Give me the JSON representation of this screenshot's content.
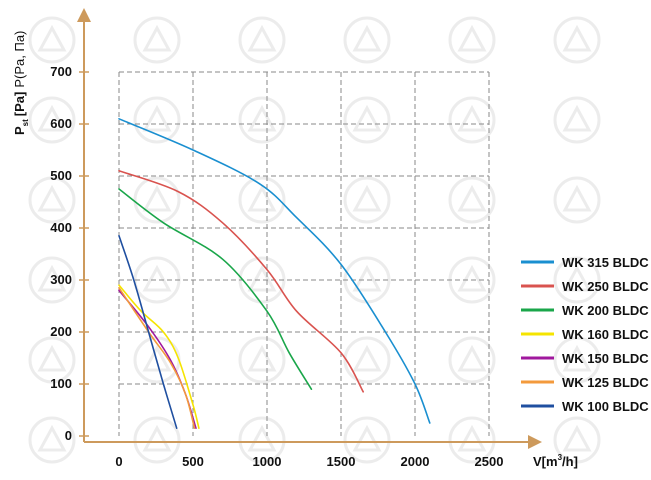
{
  "chart_data": {
    "type": "line",
    "ylabel": "P",
    "ylabel_sub": "st",
    "ylabel_unit": "[Pa]",
    "ylabel_extra": "P(Pa, Па)",
    "xlabel_main": "V[m",
    "xlabel_sup": "3",
    "xlabel_end": "/h]",
    "xlim": [
      0,
      2500
    ],
    "ylim": [
      0,
      700
    ],
    "x_ticks": [
      "0",
      "500",
      "1000",
      "1500",
      "2000",
      "2500"
    ],
    "y_ticks": [
      "0",
      "100",
      "200",
      "300",
      "400",
      "500",
      "600",
      "700"
    ],
    "x_tick_values": [
      0,
      500,
      1000,
      1500,
      2000,
      2500
    ],
    "y_tick_values": [
      0,
      100,
      200,
      300,
      400,
      500,
      600,
      700
    ],
    "grid": true,
    "legend_position": "right",
    "series": [
      {
        "name": "WK 315 BLDC",
        "color": "#1a8fd0",
        "x": [
          0,
          500,
          950,
          1200,
          1500,
          1800,
          2000,
          2100
        ],
        "y": [
          610,
          550,
          485,
          420,
          330,
          200,
          100,
          25
        ]
      },
      {
        "name": "WK 250 BLDC",
        "color": "#d9534f",
        "x": [
          0,
          400,
          700,
          1000,
          1200,
          1500,
          1650
        ],
        "y": [
          510,
          470,
          410,
          320,
          240,
          160,
          85
        ]
      },
      {
        "name": "WK 200 BLDC",
        "color": "#1aa64a",
        "x": [
          0,
          300,
          700,
          1000,
          1150,
          1300
        ],
        "y": [
          475,
          410,
          340,
          240,
          160,
          90
        ]
      },
      {
        "name": "WK 160 BLDC",
        "color": "#f5e400",
        "x": [
          0,
          150,
          300,
          400,
          500,
          540
        ],
        "y": [
          290,
          240,
          200,
          150,
          60,
          15
        ]
      },
      {
        "name": "WK 150 BLDC",
        "color": "#a0189e",
        "x": [
          0,
          200,
          350,
          450,
          520
        ],
        "y": [
          280,
          210,
          145,
          80,
          15
        ]
      },
      {
        "name": "WK 125 BLDC",
        "color": "#f39a3c",
        "x": [
          0,
          200,
          350,
          450,
          510
        ],
        "y": [
          285,
          200,
          140,
          80,
          15
        ]
      },
      {
        "name": "WK 100 BLDC",
        "color": "#1f4fa0",
        "x": [
          0,
          100,
          200,
          300,
          390
        ],
        "y": [
          385,
          300,
          200,
          100,
          15
        ]
      }
    ]
  }
}
